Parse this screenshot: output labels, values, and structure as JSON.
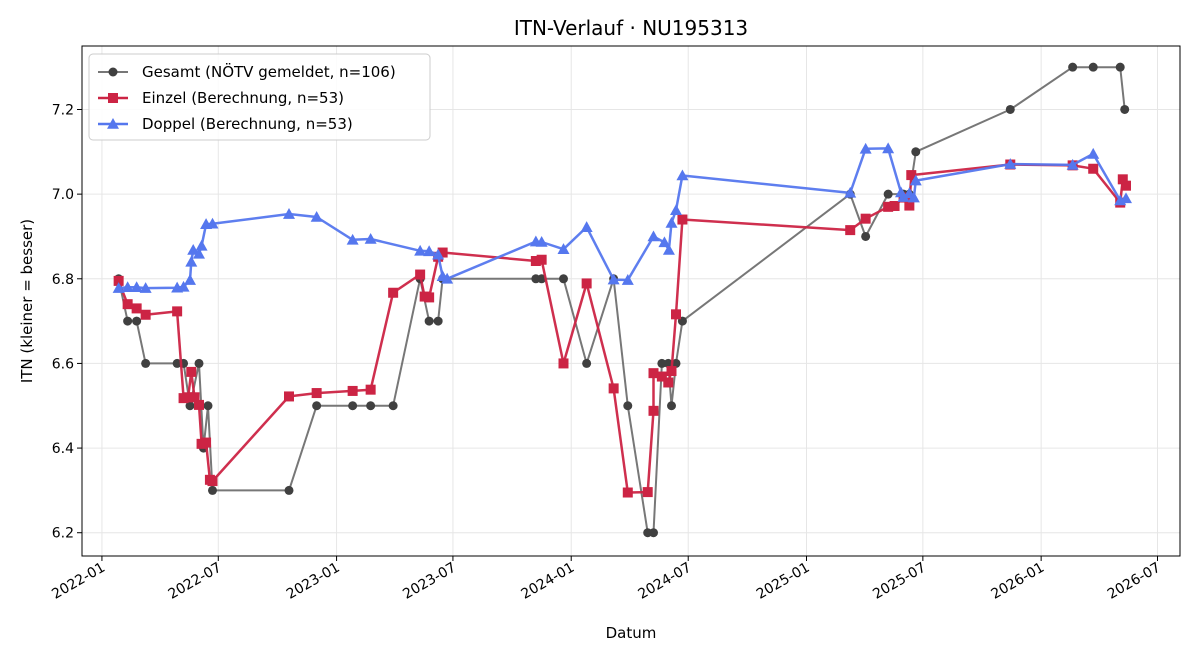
{
  "chart_data": {
    "type": "line",
    "title": "ITN-Verlauf · NU195313",
    "xlabel": "Datum",
    "ylabel": "ITN  (kleiner = besser)",
    "x_axis_type": "date",
    "xlim": [
      "2021-12-01",
      "2026-08-05"
    ],
    "ylim": [
      6.145,
      7.35
    ],
    "x_ticks": [
      "2022-01-01",
      "2022-07-01",
      "2023-01-01",
      "2023-07-01",
      "2024-01-01",
      "2024-07-01",
      "2025-01-01",
      "2025-07-01",
      "2026-01-01",
      "2026-07-01"
    ],
    "x_tick_labels": [
      "2022-01",
      "2022-07",
      "2023-01",
      "2023-07",
      "2024-01",
      "2024-07",
      "2025-01",
      "2025-07",
      "2026-01",
      "2026-07"
    ],
    "y_ticks": [
      6.2,
      6.4,
      6.6,
      6.8,
      7.0,
      7.2
    ],
    "y_tick_labels": [
      "6.2",
      "6.4",
      "6.6",
      "6.8",
      "7.0",
      "7.2"
    ],
    "grid": true,
    "legend_position": "top-left",
    "series": [
      {
        "name": "Gesamt (NÖTV gemeldet, n=106)",
        "color": "#777777",
        "marker": "circle",
        "marker_color": "#404040",
        "points": [
          [
            "2022-01-27",
            6.8
          ],
          [
            "2022-02-10",
            6.7
          ],
          [
            "2022-02-24",
            6.7
          ],
          [
            "2022-03-10",
            6.6
          ],
          [
            "2022-04-28",
            6.6
          ],
          [
            "2022-05-08",
            6.6
          ],
          [
            "2022-05-18",
            6.5
          ],
          [
            "2022-06-01",
            6.6
          ],
          [
            "2022-06-08",
            6.4
          ],
          [
            "2022-06-15",
            6.5
          ],
          [
            "2022-06-22",
            6.3
          ],
          [
            "2022-10-19",
            6.3
          ],
          [
            "2022-12-01",
            6.5
          ],
          [
            "2023-01-26",
            6.5
          ],
          [
            "2023-02-23",
            6.5
          ],
          [
            "2023-03-30",
            6.5
          ],
          [
            "2023-05-11",
            6.8
          ],
          [
            "2023-05-25",
            6.7
          ],
          [
            "2023-06-08",
            6.7
          ],
          [
            "2023-06-15",
            6.8
          ],
          [
            "2023-11-07",
            6.8
          ],
          [
            "2023-11-16",
            6.8
          ],
          [
            "2023-12-20",
            6.8
          ],
          [
            "2024-01-25",
            6.6
          ],
          [
            "2024-03-07",
            6.8
          ],
          [
            "2024-03-29",
            6.5
          ],
          [
            "2024-04-29",
            6.2
          ],
          [
            "2024-05-08",
            6.2
          ],
          [
            "2024-05-21",
            6.6
          ],
          [
            "2024-05-31",
            6.6
          ],
          [
            "2024-06-05",
            6.5
          ],
          [
            "2024-06-12",
            6.6
          ],
          [
            "2024-06-22",
            6.7
          ],
          [
            "2025-03-10",
            7.0
          ],
          [
            "2025-04-03",
            6.9
          ],
          [
            "2025-05-08",
            7.0
          ],
          [
            "2025-06-01",
            7.0
          ],
          [
            "2025-06-10",
            7.0
          ],
          [
            "2025-06-20",
            7.1
          ],
          [
            "2025-11-14",
            7.2
          ],
          [
            "2026-02-19",
            7.3
          ],
          [
            "2026-03-23",
            7.3
          ],
          [
            "2026-05-04",
            7.3
          ],
          [
            "2026-05-11",
            7.2
          ]
        ]
      },
      {
        "name": "Einzel (Berechnung, n=53)",
        "color": "#cc2444",
        "marker": "square",
        "marker_color": "#cc2444",
        "points": [
          [
            "2022-01-27",
            6.795
          ],
          [
            "2022-02-10",
            6.74
          ],
          [
            "2022-02-24",
            6.73
          ],
          [
            "2022-03-10",
            6.715
          ],
          [
            "2022-04-28",
            6.723
          ],
          [
            "2022-05-08",
            6.518
          ],
          [
            "2022-05-15",
            6.52
          ],
          [
            "2022-05-20",
            6.58
          ],
          [
            "2022-05-25",
            6.52
          ],
          [
            "2022-06-01",
            6.502
          ],
          [
            "2022-06-05",
            6.41
          ],
          [
            "2022-06-12",
            6.413
          ],
          [
            "2022-06-18",
            6.325
          ],
          [
            "2022-06-22",
            6.322
          ],
          [
            "2022-10-19",
            6.522
          ],
          [
            "2022-12-01",
            6.53
          ],
          [
            "2023-01-26",
            6.535
          ],
          [
            "2023-02-23",
            6.538
          ],
          [
            "2023-03-30",
            6.767
          ],
          [
            "2023-05-11",
            6.81
          ],
          [
            "2023-05-18",
            6.758
          ],
          [
            "2023-05-25",
            6.756
          ],
          [
            "2023-06-08",
            6.852
          ],
          [
            "2023-06-15",
            6.862
          ],
          [
            "2023-11-07",
            6.842
          ],
          [
            "2023-11-16",
            6.845
          ],
          [
            "2023-12-20",
            6.6
          ],
          [
            "2024-01-25",
            6.789
          ],
          [
            "2024-03-07",
            6.541
          ],
          [
            "2024-03-29",
            6.295
          ],
          [
            "2024-04-29",
            6.296
          ],
          [
            "2024-05-08",
            6.488
          ],
          [
            "2024-05-08",
            6.577
          ],
          [
            "2024-05-21",
            6.569
          ],
          [
            "2024-05-31",
            6.555
          ],
          [
            "2024-06-05",
            6.582
          ],
          [
            "2024-06-12",
            6.716
          ],
          [
            "2024-06-22",
            6.94
          ],
          [
            "2025-03-10",
            6.915
          ],
          [
            "2025-04-03",
            6.942
          ],
          [
            "2025-05-08",
            6.97
          ],
          [
            "2025-05-18",
            6.972
          ],
          [
            "2025-06-01",
            6.992
          ],
          [
            "2025-06-10",
            6.973
          ],
          [
            "2025-06-13",
            7.045
          ],
          [
            "2025-11-14",
            7.07
          ],
          [
            "2026-02-19",
            7.068
          ],
          [
            "2026-03-23",
            7.06
          ],
          [
            "2026-05-04",
            6.98
          ],
          [
            "2026-05-08",
            7.035
          ],
          [
            "2026-05-13",
            7.02
          ]
        ]
      },
      {
        "name": "Doppel (Berechnung, n=53)",
        "color": "#5577ee",
        "marker": "triangle",
        "marker_color": "#5577ee",
        "points": [
          [
            "2022-01-27",
            6.778
          ],
          [
            "2022-02-10",
            6.78
          ],
          [
            "2022-02-24",
            6.78
          ],
          [
            "2022-03-10",
            6.778
          ],
          [
            "2022-04-28",
            6.779
          ],
          [
            "2022-05-08",
            6.781
          ],
          [
            "2022-05-18",
            6.797
          ],
          [
            "2022-05-20",
            6.84
          ],
          [
            "2022-05-23",
            6.868
          ],
          [
            "2022-06-01",
            6.859
          ],
          [
            "2022-06-05",
            6.878
          ],
          [
            "2022-06-12",
            6.929
          ],
          [
            "2022-06-22",
            6.93
          ],
          [
            "2022-10-19",
            6.953
          ],
          [
            "2022-12-01",
            6.946
          ],
          [
            "2023-01-26",
            6.892
          ],
          [
            "2023-02-23",
            6.894
          ],
          [
            "2023-05-11",
            6.866
          ],
          [
            "2023-05-25",
            6.865
          ],
          [
            "2023-06-08",
            6.857
          ],
          [
            "2023-06-15",
            6.806
          ],
          [
            "2023-06-22",
            6.8
          ],
          [
            "2023-11-07",
            6.888
          ],
          [
            "2023-11-16",
            6.887
          ],
          [
            "2023-12-20",
            6.87
          ],
          [
            "2024-01-25",
            6.922
          ],
          [
            "2024-03-07",
            6.798
          ],
          [
            "2024-03-29",
            6.797
          ],
          [
            "2024-05-08",
            6.9
          ],
          [
            "2024-05-25",
            6.886
          ],
          [
            "2024-06-01",
            6.868
          ],
          [
            "2024-06-05",
            6.932
          ],
          [
            "2024-06-12",
            6.962
          ],
          [
            "2024-06-22",
            7.044
          ],
          [
            "2025-03-10",
            7.003
          ],
          [
            "2025-04-03",
            7.107
          ],
          [
            "2025-05-08",
            7.108
          ],
          [
            "2025-05-28",
            7.004
          ],
          [
            "2025-06-01",
            6.993
          ],
          [
            "2025-06-10",
            7.002
          ],
          [
            "2025-06-17",
            6.992
          ],
          [
            "2025-06-20",
            7.032
          ],
          [
            "2025-11-14",
            7.071
          ],
          [
            "2026-02-19",
            7.069
          ],
          [
            "2026-03-23",
            7.095
          ],
          [
            "2026-05-04",
            6.985
          ],
          [
            "2026-05-13",
            6.99
          ]
        ]
      }
    ]
  }
}
